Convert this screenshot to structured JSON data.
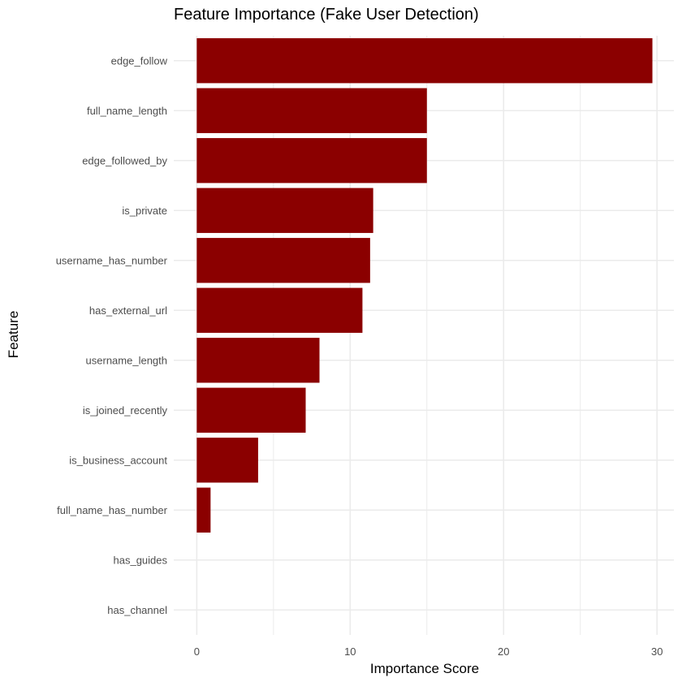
{
  "chart_data": {
    "type": "bar",
    "orientation": "horizontal",
    "title": "Feature Importance (Fake User Detection)",
    "xlabel": "Importance Score",
    "ylabel": "Feature",
    "categories": [
      "edge_follow",
      "full_name_length",
      "edge_followed_by",
      "is_private",
      "username_has_number",
      "has_external_url",
      "username_length",
      "is_joined_recently",
      "is_business_account",
      "full_name_has_number",
      "has_guides",
      "has_channel"
    ],
    "values": [
      29.7,
      15.0,
      15.0,
      11.5,
      11.3,
      10.8,
      8.0,
      7.1,
      4.0,
      0.9,
      0,
      0
    ],
    "xlim": [
      -1.5,
      31.1
    ],
    "xticks": [
      0,
      10,
      20,
      30
    ],
    "xtick_labels": [
      "0",
      "10",
      "20",
      "30"
    ],
    "grid": true,
    "bar_color": "#8b0000",
    "grid_color": "#ebebeb"
  }
}
